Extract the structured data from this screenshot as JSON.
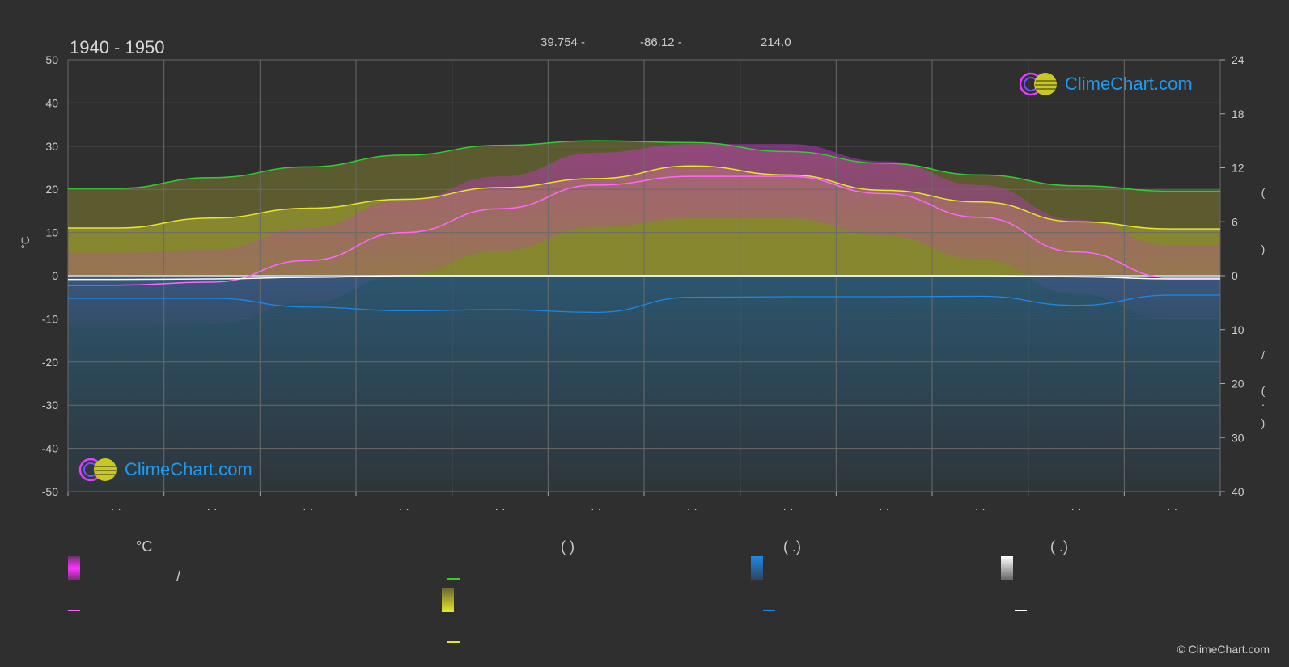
{
  "header": {
    "period": "1940 - 1950",
    "lat": "39.754 -",
    "lon": "-86.12 -",
    "elev": "214.0"
  },
  "logo": {
    "text": "ClimeChart.com"
  },
  "axes": {
    "left_unit": "°C",
    "left_ticks": [
      50,
      40,
      30,
      20,
      10,
      0,
      -10,
      -20,
      -30,
      -40,
      -50
    ],
    "right_top_ticks": [
      24,
      18,
      12,
      6,
      0
    ],
    "right_bottom_ticks": [
      10,
      20,
      30,
      40
    ],
    "right_label_glyphs": [
      "(",
      ")",
      "/",
      "(",
      "·",
      ")"
    ],
    "month_tick_label": "· ·"
  },
  "chart_data": {
    "type": "area",
    "x": [
      "1",
      "2",
      "3",
      "4",
      "5",
      "6",
      "7",
      "8",
      "9",
      "10",
      "11",
      "12"
    ],
    "ylim": [
      -50,
      50
    ],
    "secondary_ylim_top": [
      0,
      24
    ],
    "secondary_ylim_bottom": [
      0,
      40
    ],
    "grid": true,
    "series": [
      {
        "key": "daylight",
        "color": "#33cc33",
        "values": [
          9.7,
          10.9,
          12.1,
          13.4,
          14.5,
          15.0,
          14.8,
          13.8,
          12.5,
          11.2,
          10.0,
          9.4
        ]
      },
      {
        "key": "sunshine",
        "color": "#e6e62e",
        "values": [
          5.3,
          6.4,
          7.5,
          8.5,
          9.8,
          10.8,
          12.2,
          11.2,
          9.5,
          8.2,
          6.0,
          5.2
        ]
      },
      {
        "key": "temp_mean",
        "color": "#ff66ff",
        "values": [
          -2.2,
          -1.5,
          3.5,
          10,
          15.5,
          21,
          23,
          23,
          19,
          13.5,
          5.5,
          -0.5
        ]
      },
      {
        "key": "precip",
        "color": "#1e88e5",
        "values": [
          4.2,
          4.2,
          5.8,
          6.5,
          6.3,
          6.8,
          4.0,
          3.9,
          3.9,
          3.8,
          5.5,
          3.6
        ]
      },
      {
        "key": "snow",
        "color": "#ffffff",
        "values": [
          0.7,
          0.6,
          0.3,
          0,
          0,
          0,
          0,
          0,
          0,
          0,
          0.2,
          0.6
        ]
      }
    ]
  },
  "legend": {
    "temp_header": "°C",
    "sun_header": "(          )",
    "rain_header": "(   .)",
    "snow_header": "(   .)",
    "slash": "/",
    "colors": {
      "temp_range": "#ff33ff",
      "temp_mean": "#ff66ff",
      "daylight": "#33cc33",
      "sunshine_fill": "#e6e62e",
      "sunshine_line": "#e6e62e",
      "precip_fill": "#1e88e5",
      "precip_line": "#1e88e5",
      "snow_fill": "#e0e0e0",
      "snow_line": "#ffffff"
    }
  },
  "copyright": "© ClimeChart.com"
}
